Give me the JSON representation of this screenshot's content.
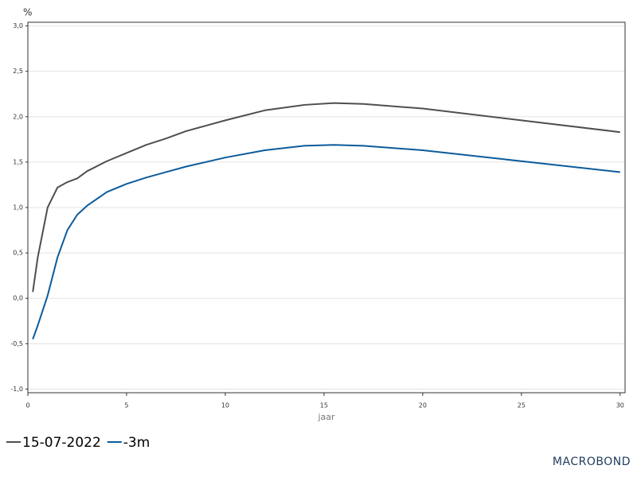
{
  "chart_data": {
    "type": "line",
    "y_unit": "%",
    "x_label": "jaar",
    "x": [
      0.25,
      0.5,
      1,
      1.5,
      2,
      2.5,
      3,
      4,
      5,
      6,
      7,
      8,
      10,
      12,
      14,
      15.5,
      17,
      20,
      25,
      30
    ],
    "series": [
      {
        "name": "15-07-2022",
        "color": "#4d4f53",
        "values": [
          0.07,
          0.45,
          1.0,
          1.22,
          1.28,
          1.32,
          1.4,
          1.51,
          1.6,
          1.69,
          1.76,
          1.84,
          1.96,
          2.07,
          2.13,
          2.15,
          2.14,
          2.09,
          1.96,
          1.83
        ]
      },
      {
        "name": "-3m",
        "color": "#0b5b9c",
        "values": [
          -0.45,
          -0.3,
          0.03,
          0.45,
          0.75,
          0.92,
          1.02,
          1.17,
          1.26,
          1.33,
          1.39,
          1.45,
          1.55,
          1.63,
          1.68,
          1.69,
          1.68,
          1.63,
          1.51,
          1.39
        ]
      }
    ],
    "xlim": [
      0,
      30.25
    ],
    "xticks": [
      0,
      5,
      10,
      15,
      20,
      25,
      30
    ],
    "ylim": [
      -1.04,
      3.04
    ],
    "yticks": [
      {
        "value": -1,
        "label": "-1,0"
      },
      {
        "value": -0.5,
        "label": "-0,5"
      },
      {
        "value": 0,
        "label": "0,0"
      },
      {
        "value": 0.5,
        "label": "0,5"
      },
      {
        "value": 1,
        "label": "1,0"
      },
      {
        "value": 1.5,
        "label": "1,5"
      },
      {
        "value": 2,
        "label": "2,0"
      },
      {
        "value": 2.5,
        "label": "2,5"
      },
      {
        "value": 3,
        "label": "3,0"
      }
    ],
    "grid": true,
    "legend": "bottom-left",
    "logo": "MACROBOND"
  }
}
